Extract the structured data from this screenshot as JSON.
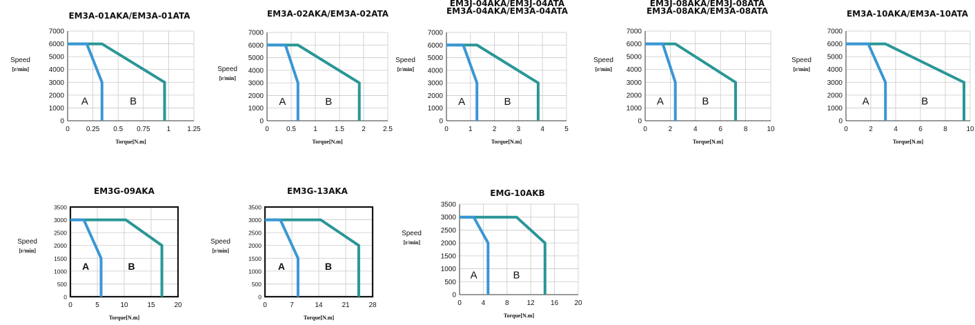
{
  "labels": {
    "speed": "Speed",
    "speed_unit": "[r/min]",
    "torque": "Torque[N.m]"
  },
  "colors": {
    "zone_a": "#3a97d4",
    "zone_b": "#2a9696"
  },
  "chart_data": [
    {
      "type": "line",
      "title_lines": [
        "EM3A-01AKA/EM3A-01ATA"
      ],
      "xlabel": "Torque[N.m]",
      "ylabel": "Speed [r/min]",
      "xticks": [
        "0",
        "0.25",
        "0.5",
        "0.75",
        "1",
        "1.25"
      ],
      "xlim": [
        0,
        1.25
      ],
      "yticks": [
        "0",
        "1000",
        "2000",
        "3000",
        "4000",
        "5000",
        "6000",
        "7000"
      ],
      "ylim": [
        0,
        7000
      ],
      "grid": true,
      "zone_labels": [
        "A",
        "B"
      ],
      "series": [
        {
          "zone": "A",
          "points": [
            [
              0,
              6000
            ],
            [
              0.19,
              6000
            ],
            [
              0.34,
              3000
            ],
            [
              0.34,
              0
            ]
          ]
        },
        {
          "zone": "B",
          "points": [
            [
              0,
              6000
            ],
            [
              0.34,
              6000
            ],
            [
              0.96,
              3000
            ],
            [
              0.96,
              0
            ]
          ]
        }
      ]
    },
    {
      "type": "line",
      "title_lines": [
        "EM3A-02AKA/EM3A-02ATA"
      ],
      "xlabel": "Torque[N.m]",
      "ylabel": "Speed [r/min]",
      "xticks": [
        "0",
        "0.5",
        "1",
        "1.5",
        "2",
        "2.5"
      ],
      "xlim": [
        0,
        2.5
      ],
      "yticks": [
        "0",
        "1000",
        "2000",
        "3000",
        "4000",
        "5000",
        "6000",
        "7000"
      ],
      "ylim": [
        0,
        7000
      ],
      "grid": true,
      "zone_labels": [
        "A",
        "B"
      ],
      "series": [
        {
          "zone": "A",
          "points": [
            [
              0,
              6000
            ],
            [
              0.38,
              6000
            ],
            [
              0.64,
              3000
            ],
            [
              0.64,
              0
            ]
          ]
        },
        {
          "zone": "B",
          "points": [
            [
              0,
              6000
            ],
            [
              0.64,
              6000
            ],
            [
              1.91,
              3000
            ],
            [
              1.91,
              0
            ]
          ]
        }
      ]
    },
    {
      "type": "line",
      "title_lines": [
        "EM3J-04AKA/EM3J-04ATA",
        "EM3A-04AKA/EM3A-04ATA"
      ],
      "xlabel": "Torque[N.m]",
      "ylabel": "Speed [r/min]",
      "xticks": [
        "0",
        "1",
        "2",
        "3",
        "4",
        "5"
      ],
      "xlim": [
        0,
        5
      ],
      "yticks": [
        "0",
        "1000",
        "2000",
        "3000",
        "4000",
        "5000",
        "6000",
        "7000"
      ],
      "ylim": [
        0,
        7000
      ],
      "grid": true,
      "zone_labels": [
        "A",
        "B"
      ],
      "series": [
        {
          "zone": "A",
          "points": [
            [
              0,
              6000
            ],
            [
              0.7,
              6000
            ],
            [
              1.27,
              3000
            ],
            [
              1.27,
              0
            ]
          ]
        },
        {
          "zone": "B",
          "points": [
            [
              0,
              6000
            ],
            [
              1.27,
              6000
            ],
            [
              3.82,
              3000
            ],
            [
              3.82,
              0
            ]
          ]
        }
      ]
    },
    {
      "type": "line",
      "title_lines": [
        "EM3J-08AKA/EM3J-08ATA",
        "EM3A-08AKA/EM3A-08ATA"
      ],
      "xlabel": "Torque[N.m]",
      "ylabel": "Speed [r/min]",
      "xticks": [
        "0",
        "2",
        "4",
        "6",
        "8",
        "10"
      ],
      "xlim": [
        0,
        10
      ],
      "yticks": [
        "0",
        "1000",
        "2000",
        "3000",
        "4000",
        "5000",
        "6000",
        "7000"
      ],
      "ylim": [
        0,
        7000
      ],
      "grid": true,
      "zone_labels": [
        "A",
        "B"
      ],
      "series": [
        {
          "zone": "A",
          "points": [
            [
              0,
              6000
            ],
            [
              1.4,
              6000
            ],
            [
              2.4,
              3000
            ],
            [
              2.4,
              0
            ]
          ]
        },
        {
          "zone": "B",
          "points": [
            [
              0,
              6000
            ],
            [
              2.4,
              6000
            ],
            [
              7.2,
              3000
            ],
            [
              7.2,
              0
            ]
          ]
        }
      ]
    },
    {
      "type": "line",
      "title_lines": [
        "EM3A-10AKA/EM3A-10ATA"
      ],
      "xlabel": "Torque[N.m]",
      "ylabel": "Speed [r/min]",
      "xticks": [
        "0",
        "2",
        "4",
        "6",
        "8",
        "10"
      ],
      "xlim": [
        0,
        10
      ],
      "yticks": [
        "0",
        "1000",
        "2000",
        "3000",
        "4000",
        "5000",
        "6000",
        "7000"
      ],
      "ylim": [
        0,
        7000
      ],
      "grid": true,
      "zone_labels": [
        "A",
        "B"
      ],
      "series": [
        {
          "zone": "A",
          "points": [
            [
              0,
              6000
            ],
            [
              1.8,
              6000
            ],
            [
              3.18,
              3000
            ],
            [
              3.18,
              0
            ]
          ]
        },
        {
          "zone": "B",
          "points": [
            [
              0,
              6000
            ],
            [
              3.18,
              6000
            ],
            [
              9.5,
              3000
            ],
            [
              9.5,
              0
            ]
          ]
        }
      ]
    },
    {
      "type": "line",
      "title_lines": [
        "EM3G-09AKA"
      ],
      "xlabel": "Torque[N.m]",
      "ylabel": "Speed [r/min]",
      "xticks": [
        "0",
        "5",
        "10",
        "15",
        "20"
      ],
      "xlim": [
        0,
        20
      ],
      "yticks": [
        "0",
        "500",
        "1000",
        "1500",
        "2000",
        "2500",
        "3000",
        "3500"
      ],
      "ylim": [
        0,
        3500
      ],
      "grid": true,
      "boxed": true,
      "serif_zone_labels": true,
      "zone_labels": [
        "A",
        "B"
      ],
      "series": [
        {
          "zone": "A",
          "points": [
            [
              0,
              3000
            ],
            [
              2.5,
              3000
            ],
            [
              5.7,
              1500
            ],
            [
              5.7,
              0
            ]
          ]
        },
        {
          "zone": "B",
          "points": [
            [
              0,
              3000
            ],
            [
              10.3,
              3000
            ],
            [
              17.0,
              2000
            ],
            [
              17.0,
              0
            ]
          ]
        }
      ]
    },
    {
      "type": "line",
      "title_lines": [
        "EM3G-13AKA"
      ],
      "xlabel": "Torque[N.m]",
      "ylabel": "Speed [r/min]",
      "xticks": [
        "0",
        "7",
        "14",
        "21",
        "28"
      ],
      "xlim": [
        0,
        28
      ],
      "yticks": [
        "0",
        "500",
        "1000",
        "1500",
        "2000",
        "2500",
        "3000",
        "3500"
      ],
      "ylim": [
        0,
        3500
      ],
      "grid": true,
      "boxed": true,
      "serif_zone_labels": true,
      "zone_labels": [
        "A",
        "B"
      ],
      "series": [
        {
          "zone": "A",
          "points": [
            [
              0,
              3000
            ],
            [
              4.0,
              3000
            ],
            [
              8.6,
              1500
            ],
            [
              8.6,
              0
            ]
          ]
        },
        {
          "zone": "B",
          "points": [
            [
              0,
              3000
            ],
            [
              14.5,
              3000
            ],
            [
              24.4,
              2000
            ],
            [
              24.4,
              0
            ]
          ]
        }
      ]
    },
    {
      "type": "line",
      "title_lines": [
        "EMG-10AKB"
      ],
      "xlabel": "Torque[N.m]",
      "ylabel": "Speed [r/min]",
      "xticks": [
        "0",
        "4",
        "8",
        "12",
        "16",
        "20"
      ],
      "xlim": [
        0,
        20
      ],
      "yticks": [
        "0",
        "500",
        "1000",
        "1500",
        "2000",
        "2500",
        "3000",
        "3500"
      ],
      "ylim": [
        0,
        3500
      ],
      "grid": true,
      "zone_labels": [
        "A",
        "B"
      ],
      "series": [
        {
          "zone": "A",
          "points": [
            [
              0,
              3000
            ],
            [
              2.4,
              3000
            ],
            [
              4.8,
              2000
            ],
            [
              4.8,
              0
            ]
          ]
        },
        {
          "zone": "B",
          "points": [
            [
              0,
              3000
            ],
            [
              9.6,
              3000
            ],
            [
              14.4,
              2000
            ],
            [
              14.4,
              0
            ]
          ]
        }
      ]
    }
  ]
}
